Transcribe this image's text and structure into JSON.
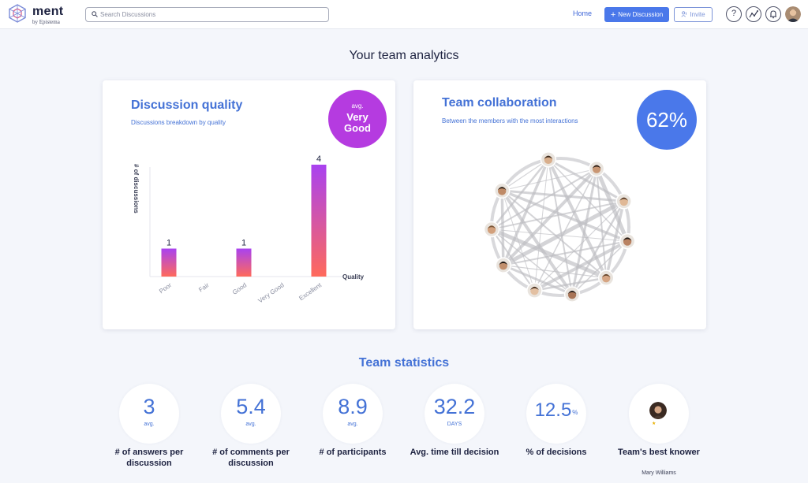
{
  "app": {
    "name": "ment",
    "subtitle": "by Epistema"
  },
  "header": {
    "search_placeholder": "Search Discussions",
    "home": "Home",
    "new_discussion": "New Discussion",
    "invite": "Invite",
    "help": "?"
  },
  "page": {
    "title": "Your team analytics"
  },
  "quality": {
    "title": "Discussion quality",
    "subtitle": "Discussions breakdown by quality",
    "avg_label": "avg.",
    "avg_value": "Very Good",
    "chart_data": {
      "type": "bar",
      "title": "Discussion quality",
      "xlabel": "Quality",
      "ylabel": "# of discussions",
      "categories": [
        "Poor",
        "Fair",
        "Good",
        "Very Good",
        "Excellent"
      ],
      "values": [
        1,
        0,
        1,
        0,
        4
      ],
      "ylim": [
        0,
        4
      ],
      "colors": {
        "top": "#a942f0",
        "bottom": "#ff6a5b"
      }
    }
  },
  "collab": {
    "title": "Team collaboration",
    "subtitle": "Between the members with the most interactions",
    "value": "62%"
  },
  "stats": {
    "title": "Team statistics",
    "items": [
      {
        "value": "3",
        "unit": "avg.",
        "label": "# of answers per discussion"
      },
      {
        "value": "5.4",
        "unit": "avg.",
        "label": "# of comments per discussion"
      },
      {
        "value": "8.9",
        "unit": "avg.",
        "label": "# of participants"
      },
      {
        "value": "32.2",
        "unit": "DAYS",
        "label": "Avg. time till decision"
      },
      {
        "value": "12.5",
        "unit": "%",
        "label": "% of decisions"
      },
      {
        "value": "",
        "unit": "",
        "label": "Team's best knower",
        "person": "Mary Williams"
      }
    ]
  },
  "colors": {
    "accent": "#4472d6",
    "button": "#4a78ea",
    "badge_purple": "#b53be0"
  }
}
